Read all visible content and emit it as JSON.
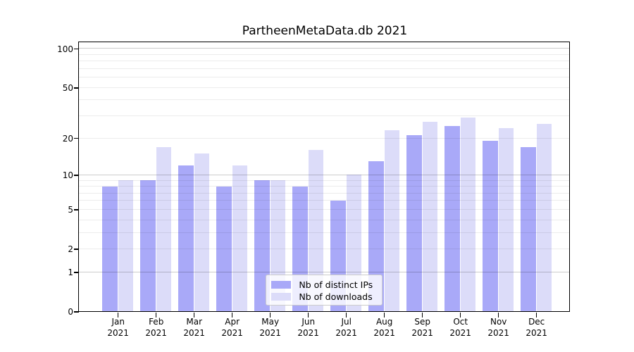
{
  "figure": {
    "title": "PartheenMetaData.db 2021"
  },
  "legend": {
    "items": [
      {
        "label": "Nb of distinct IPs",
        "color": "#a9a9f8"
      },
      {
        "label": "Nb of downloads",
        "color": "#dcdcf9"
      }
    ]
  },
  "y_axis": {
    "tick_labels": [
      "0",
      "1",
      "2",
      "5",
      "10",
      "20",
      "50",
      "100"
    ]
  },
  "x_axis": {
    "months": [
      "Jan",
      "Feb",
      "Mar",
      "Apr",
      "May",
      "Jun",
      "Jul",
      "Aug",
      "Sep",
      "Oct",
      "Nov",
      "Dec"
    ],
    "year_label": "2021"
  },
  "colors": {
    "ips_bar": "#a9a9f8",
    "downloads_bar": "#dcdcf9",
    "grid_major": "#c9c9c9",
    "grid_minor": "#ececec",
    "axis": "#000000",
    "background": "#ffffff",
    "legend_border": "#cccccc"
  },
  "chart_data": {
    "type": "bar",
    "title": "PartheenMetaData.db 2021",
    "categories": [
      "Jan 2021",
      "Feb 2021",
      "Mar 2021",
      "Apr 2021",
      "May 2021",
      "Jun 2021",
      "Jul 2021",
      "Aug 2021",
      "Sep 2021",
      "Oct 2021",
      "Nov 2021",
      "Dec 2021"
    ],
    "series": [
      {
        "name": "Nb of distinct IPs",
        "values": [
          8,
          9,
          12,
          8,
          9,
          8,
          6,
          13,
          21,
          25,
          19,
          17
        ],
        "color": "#a9a9f8"
      },
      {
        "name": "Nb of downloads",
        "values": [
          9,
          17,
          15,
          12,
          9,
          16,
          10,
          23,
          27,
          29,
          24,
          26
        ],
        "color": "#dcdcf9"
      }
    ],
    "y_scale": "log1p",
    "y_ticks": [
      0,
      1,
      2,
      5,
      10,
      20,
      50,
      100
    ],
    "ylim": [
      0,
      112
    ],
    "grid": "horizontal-major-minor",
    "legend_position": "lower center"
  }
}
